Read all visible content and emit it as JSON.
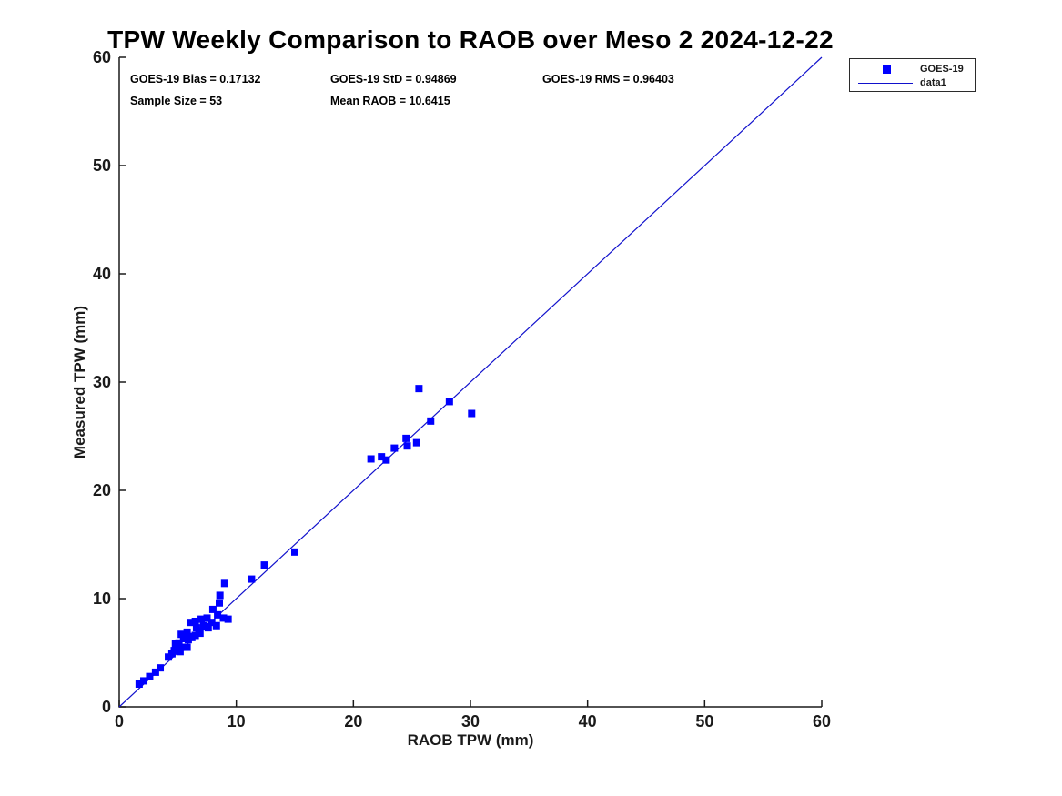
{
  "title": "TPW Weekly Comparison to RAOB over Meso 2 2024-12-22",
  "stats": {
    "bias": "GOES-19 Bias = 0.17132",
    "std": "GOES-19 StD = 0.94869",
    "rms": "GOES-19 RMS = 0.96403",
    "sample_size": "Sample Size = 53",
    "mean_raob": "Mean RAOB = 10.6415"
  },
  "legend": {
    "entries": [
      {
        "label": "GOES-19",
        "swatch": "square-marker"
      },
      {
        "label": "data1",
        "swatch": "line"
      }
    ]
  },
  "colors": {
    "marker": "#0000FF",
    "line": "#1111CC",
    "axis": "#1a1a1a",
    "text": "#000000"
  },
  "chart_data": {
    "type": "scatter",
    "title": "TPW Weekly Comparison to RAOB over Meso 2 2024-12-22",
    "xlabel": "RAOB TPW (mm)",
    "ylabel": "Measured TPW (mm)",
    "xlim": [
      0,
      60
    ],
    "ylim": [
      0,
      60
    ],
    "xticks": [
      0,
      10,
      20,
      30,
      40,
      50,
      60
    ],
    "yticks": [
      0,
      10,
      20,
      30,
      40,
      50,
      60
    ],
    "grid": false,
    "legend_position": "top-right-outside",
    "annotations": [
      "GOES-19 Bias = 0.17132",
      "GOES-19 StD = 0.94869",
      "GOES-19 RMS = 0.96403",
      "Sample Size = 53",
      "Mean RAOB = 10.6415"
    ],
    "series": [
      {
        "name": "GOES-19",
        "type": "scatter",
        "marker": "square",
        "color": "#0000FF",
        "points": [
          [
            1.7,
            2.1
          ],
          [
            2.1,
            2.4
          ],
          [
            2.6,
            2.8
          ],
          [
            3.1,
            3.2
          ],
          [
            3.5,
            3.6
          ],
          [
            4.2,
            4.6
          ],
          [
            4.5,
            4.9
          ],
          [
            4.7,
            5.2
          ],
          [
            4.8,
            5.8
          ],
          [
            5.1,
            5.9
          ],
          [
            5.2,
            5.1
          ],
          [
            5.3,
            5.5
          ],
          [
            5.3,
            6.7
          ],
          [
            5.5,
            6.3
          ],
          [
            5.8,
            5.5
          ],
          [
            5.8,
            6.9
          ],
          [
            5.9,
            6.2
          ],
          [
            6.0,
            6.5
          ],
          [
            6.1,
            7.8
          ],
          [
            6.2,
            6.4
          ],
          [
            6.5,
            6.6
          ],
          [
            6.5,
            7.9
          ],
          [
            6.6,
            7.3
          ],
          [
            6.8,
            7.0
          ],
          [
            6.9,
            6.8
          ],
          [
            7.0,
            8.1
          ],
          [
            7.2,
            7.5
          ],
          [
            7.4,
            7.4
          ],
          [
            7.5,
            8.2
          ],
          [
            7.6,
            7.3
          ],
          [
            7.9,
            7.8
          ],
          [
            8.0,
            9.0
          ],
          [
            8.3,
            7.5
          ],
          [
            8.4,
            8.5
          ],
          [
            8.55,
            9.6
          ],
          [
            8.6,
            10.3
          ],
          [
            8.9,
            8.2
          ],
          [
            9.0,
            11.4
          ],
          [
            9.3,
            8.1
          ],
          [
            11.3,
            11.8
          ],
          [
            12.4,
            13.1
          ],
          [
            15.0,
            14.3
          ],
          [
            21.5,
            22.9
          ],
          [
            22.4,
            23.1
          ],
          [
            22.8,
            22.8
          ],
          [
            23.5,
            23.9
          ],
          [
            24.5,
            24.8
          ],
          [
            24.6,
            24.1
          ],
          [
            25.4,
            24.4
          ],
          [
            25.6,
            29.4
          ],
          [
            26.6,
            26.4
          ],
          [
            28.2,
            28.2
          ],
          [
            30.1,
            27.1
          ]
        ]
      },
      {
        "name": "data1",
        "type": "line",
        "color": "#1111CC",
        "points": [
          [
            0,
            0
          ],
          [
            60,
            60
          ]
        ]
      }
    ]
  }
}
